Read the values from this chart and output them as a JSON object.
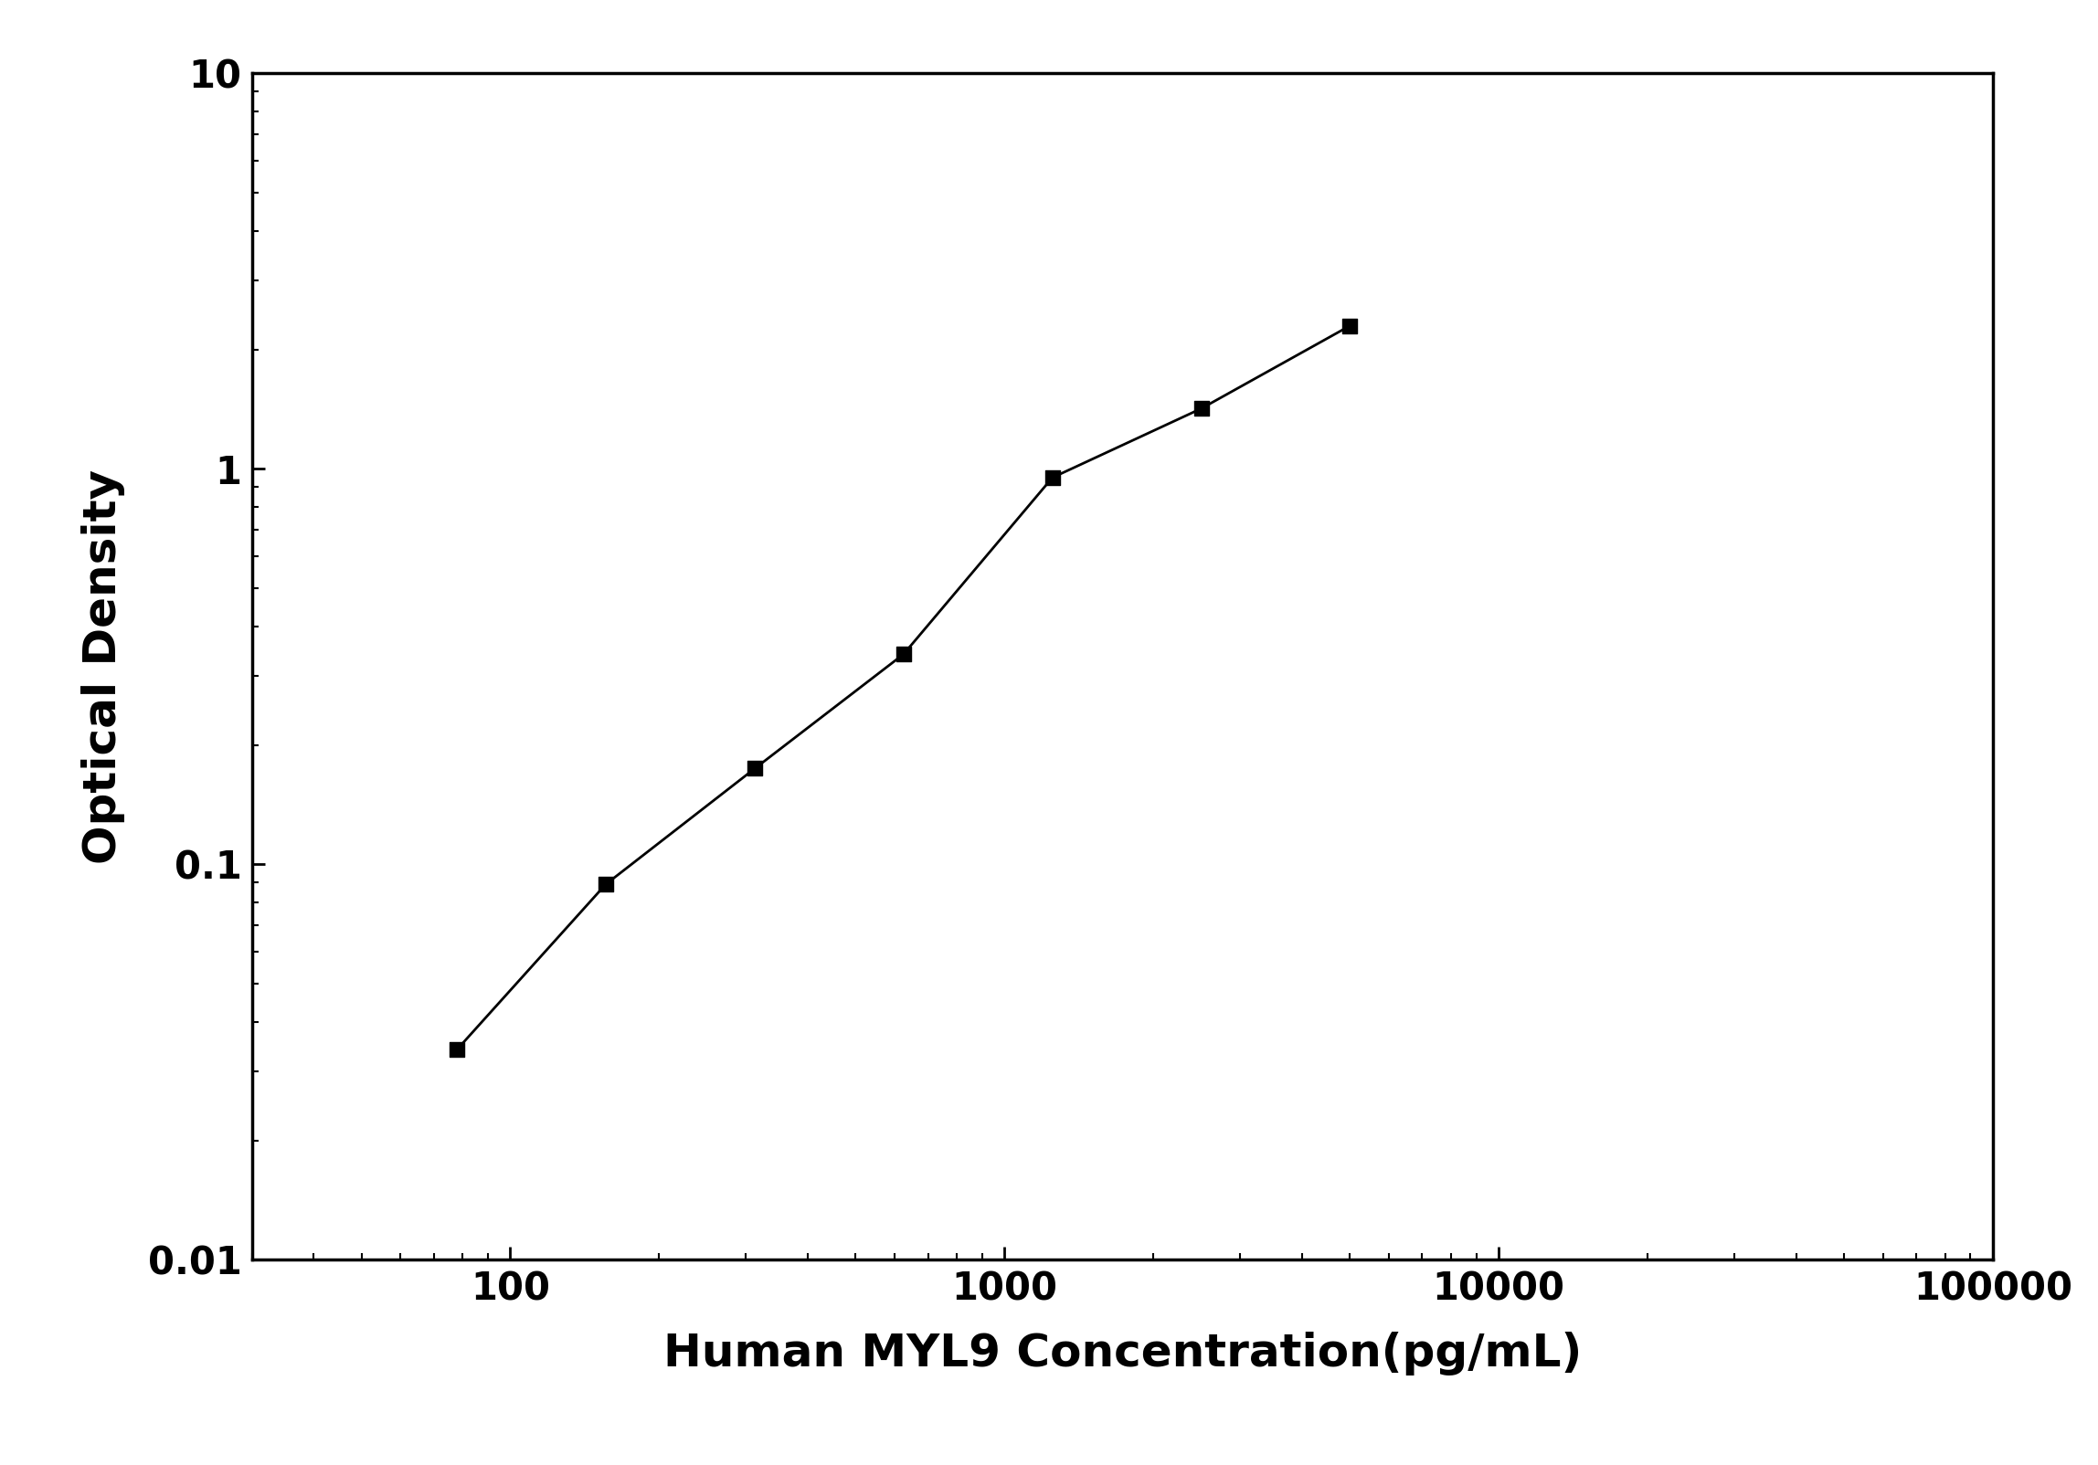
{
  "x_data": [
    78,
    156,
    313,
    625,
    1250,
    2500,
    5000
  ],
  "y_data": [
    0.034,
    0.089,
    0.175,
    0.34,
    0.95,
    1.42,
    2.3
  ],
  "xlabel": "Human MYL9 Concentration(pg/mL)",
  "ylabel": "Optical Density",
  "xlim": [
    30,
    100000
  ],
  "ylim": [
    0.01,
    10
  ],
  "background_color": "#ffffff",
  "line_color": "#000000",
  "marker_color": "#000000",
  "marker": "s",
  "marker_size": 120,
  "linewidth": 2.0,
  "xlabel_fontsize": 36,
  "ylabel_fontsize": 36,
  "tick_fontsize": 30,
  "xlabel_fontweight": "bold",
  "ylabel_fontweight": "bold",
  "tick_fontweight": "bold",
  "spine_linewidth": 2.5,
  "xticks": [
    100,
    1000,
    10000,
    100000
  ],
  "yticks": [
    0.01,
    0.1,
    1,
    10
  ],
  "xtick_labels": [
    "100",
    "1000",
    "10000",
    "100000"
  ],
  "ytick_labels": [
    "0.01",
    "0.1",
    "1",
    "10"
  ]
}
